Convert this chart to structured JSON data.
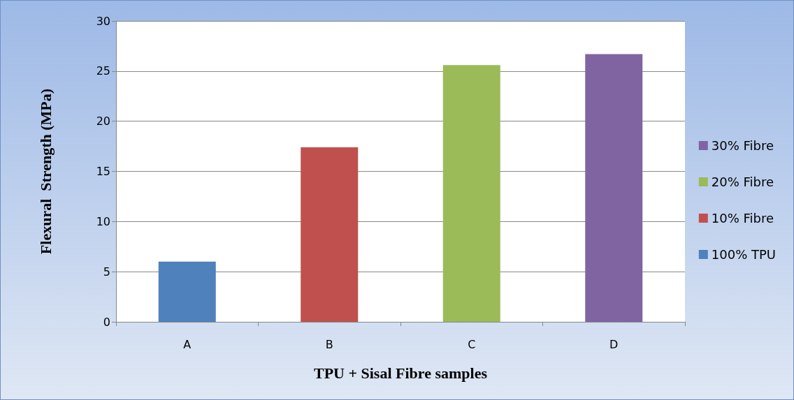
{
  "chart_data": {
    "type": "bar",
    "xlabel": "TPU + Sisal Fibre samples",
    "ylabel": "Flexural  Strength (MPa)",
    "categories": [
      "A",
      "B",
      "C",
      "D"
    ],
    "series": [
      {
        "name": "100% TPU",
        "color": "#4f81bd",
        "values": [
          6.0,
          null,
          null,
          null
        ]
      },
      {
        "name": "10% Fibre",
        "color": "#c0504d",
        "values": [
          null,
          17.4,
          null,
          null
        ]
      },
      {
        "name": "20% Fibre",
        "color": "#9bbb59",
        "values": [
          null,
          null,
          25.6,
          null
        ]
      },
      {
        "name": "30% Fibre",
        "color": "#8064a2",
        "values": [
          null,
          null,
          null,
          26.7
        ]
      }
    ],
    "ylim": [
      0,
      30
    ],
    "yticks": [
      0,
      5,
      10,
      15,
      20,
      25,
      30
    ],
    "grid": "y",
    "legend": "right"
  }
}
